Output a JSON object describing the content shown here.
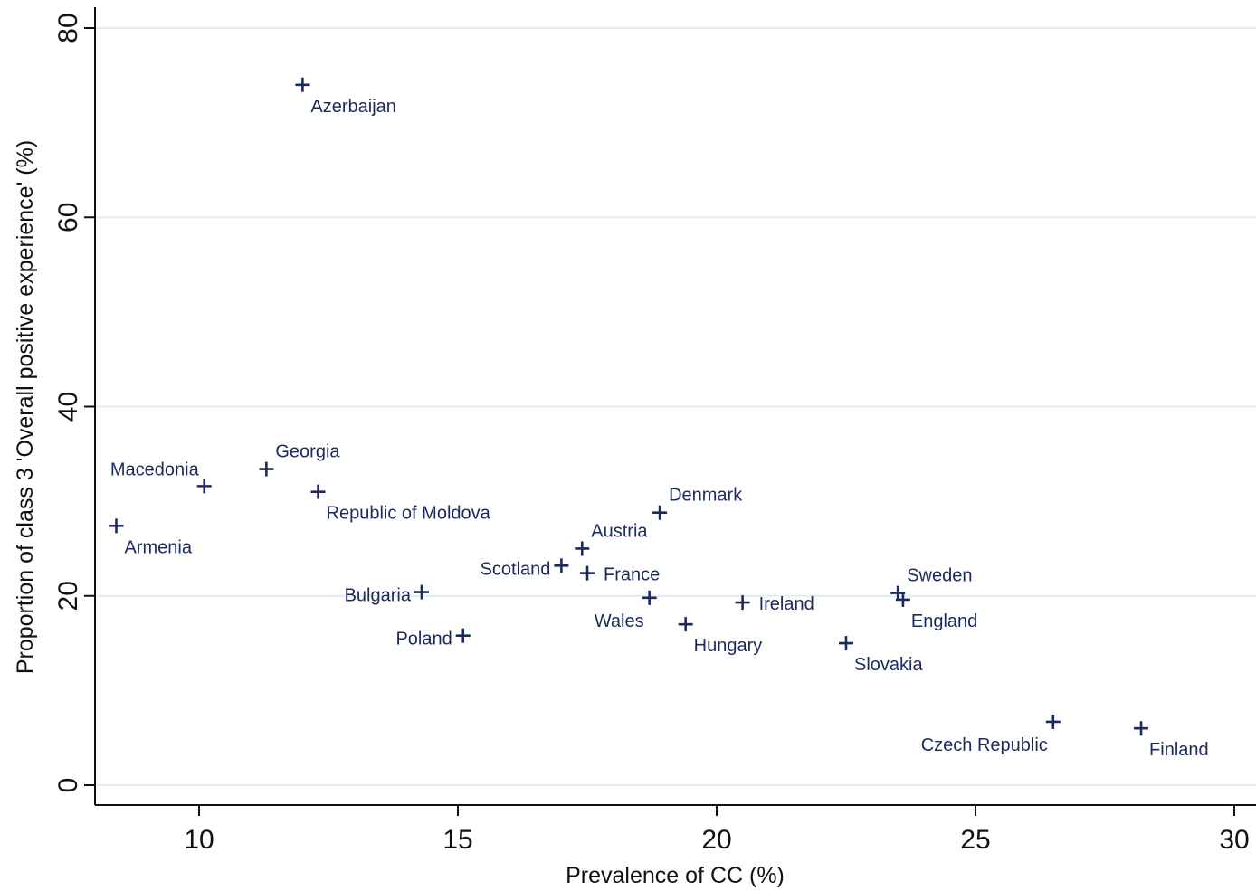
{
  "chart_data": {
    "type": "scatter",
    "title": "",
    "xlabel": "Prevalence of CC (%)",
    "ylabel": "Proportion of class 3 'Overall positive experience' (%)",
    "xlim": [
      8,
      30.4
    ],
    "ylim": [
      -2,
      82
    ],
    "x_ticks": [
      10,
      15,
      20,
      25,
      30
    ],
    "y_ticks": [
      0,
      20,
      40,
      60,
      80
    ],
    "grid": "horizontal",
    "marker": "plus",
    "colors": {
      "marker": "#1b2a5e",
      "label": "#1b2a5e",
      "grid": "#e3ecee",
      "axis": "#111111"
    },
    "points": [
      {
        "label": "Azerbaijan",
        "x": 12.0,
        "y": 74.0,
        "label_pos": "below-right"
      },
      {
        "label": "Macedonia",
        "x": 10.1,
        "y": 31.6,
        "label_pos": "above-left"
      },
      {
        "label": "Georgia",
        "x": 11.3,
        "y": 33.4,
        "label_pos": "above-right"
      },
      {
        "label": "Republic of Moldova",
        "x": 12.3,
        "y": 31.0,
        "label_pos": "below-right"
      },
      {
        "label": "Armenia",
        "x": 8.4,
        "y": 27.4,
        "label_pos": "below-right"
      },
      {
        "label": "Bulgaria",
        "x": 14.3,
        "y": 20.4,
        "label_pos": "left"
      },
      {
        "label": "Poland",
        "x": 15.1,
        "y": 15.8,
        "label_pos": "left"
      },
      {
        "label": "Scotland",
        "x": 17.0,
        "y": 23.2,
        "label_pos": "left"
      },
      {
        "label": "Austria",
        "x": 17.4,
        "y": 25.0,
        "label_pos": "above-right"
      },
      {
        "label": "France",
        "x": 17.5,
        "y": 22.4,
        "label_pos": "right"
      },
      {
        "label": "Denmark",
        "x": 18.9,
        "y": 28.8,
        "label_pos": "above-right"
      },
      {
        "label": "Wales",
        "x": 18.7,
        "y": 19.8,
        "label_pos": "below-left"
      },
      {
        "label": "Hungary",
        "x": 19.4,
        "y": 17.0,
        "label_pos": "below-right"
      },
      {
        "label": "Ireland",
        "x": 20.5,
        "y": 19.3,
        "label_pos": "right"
      },
      {
        "label": "Slovakia",
        "x": 22.5,
        "y": 15.0,
        "label_pos": "below-right"
      },
      {
        "label": "Sweden",
        "x": 23.5,
        "y": 20.3,
        "label_pos": "above-right"
      },
      {
        "label": "England",
        "x": 23.6,
        "y": 19.6,
        "label_pos": "below-right"
      },
      {
        "label": "Czech Republic",
        "x": 26.5,
        "y": 6.7,
        "label_pos": "below-left"
      },
      {
        "label": "Finland",
        "x": 28.2,
        "y": 6.0,
        "label_pos": "below-right"
      }
    ]
  }
}
